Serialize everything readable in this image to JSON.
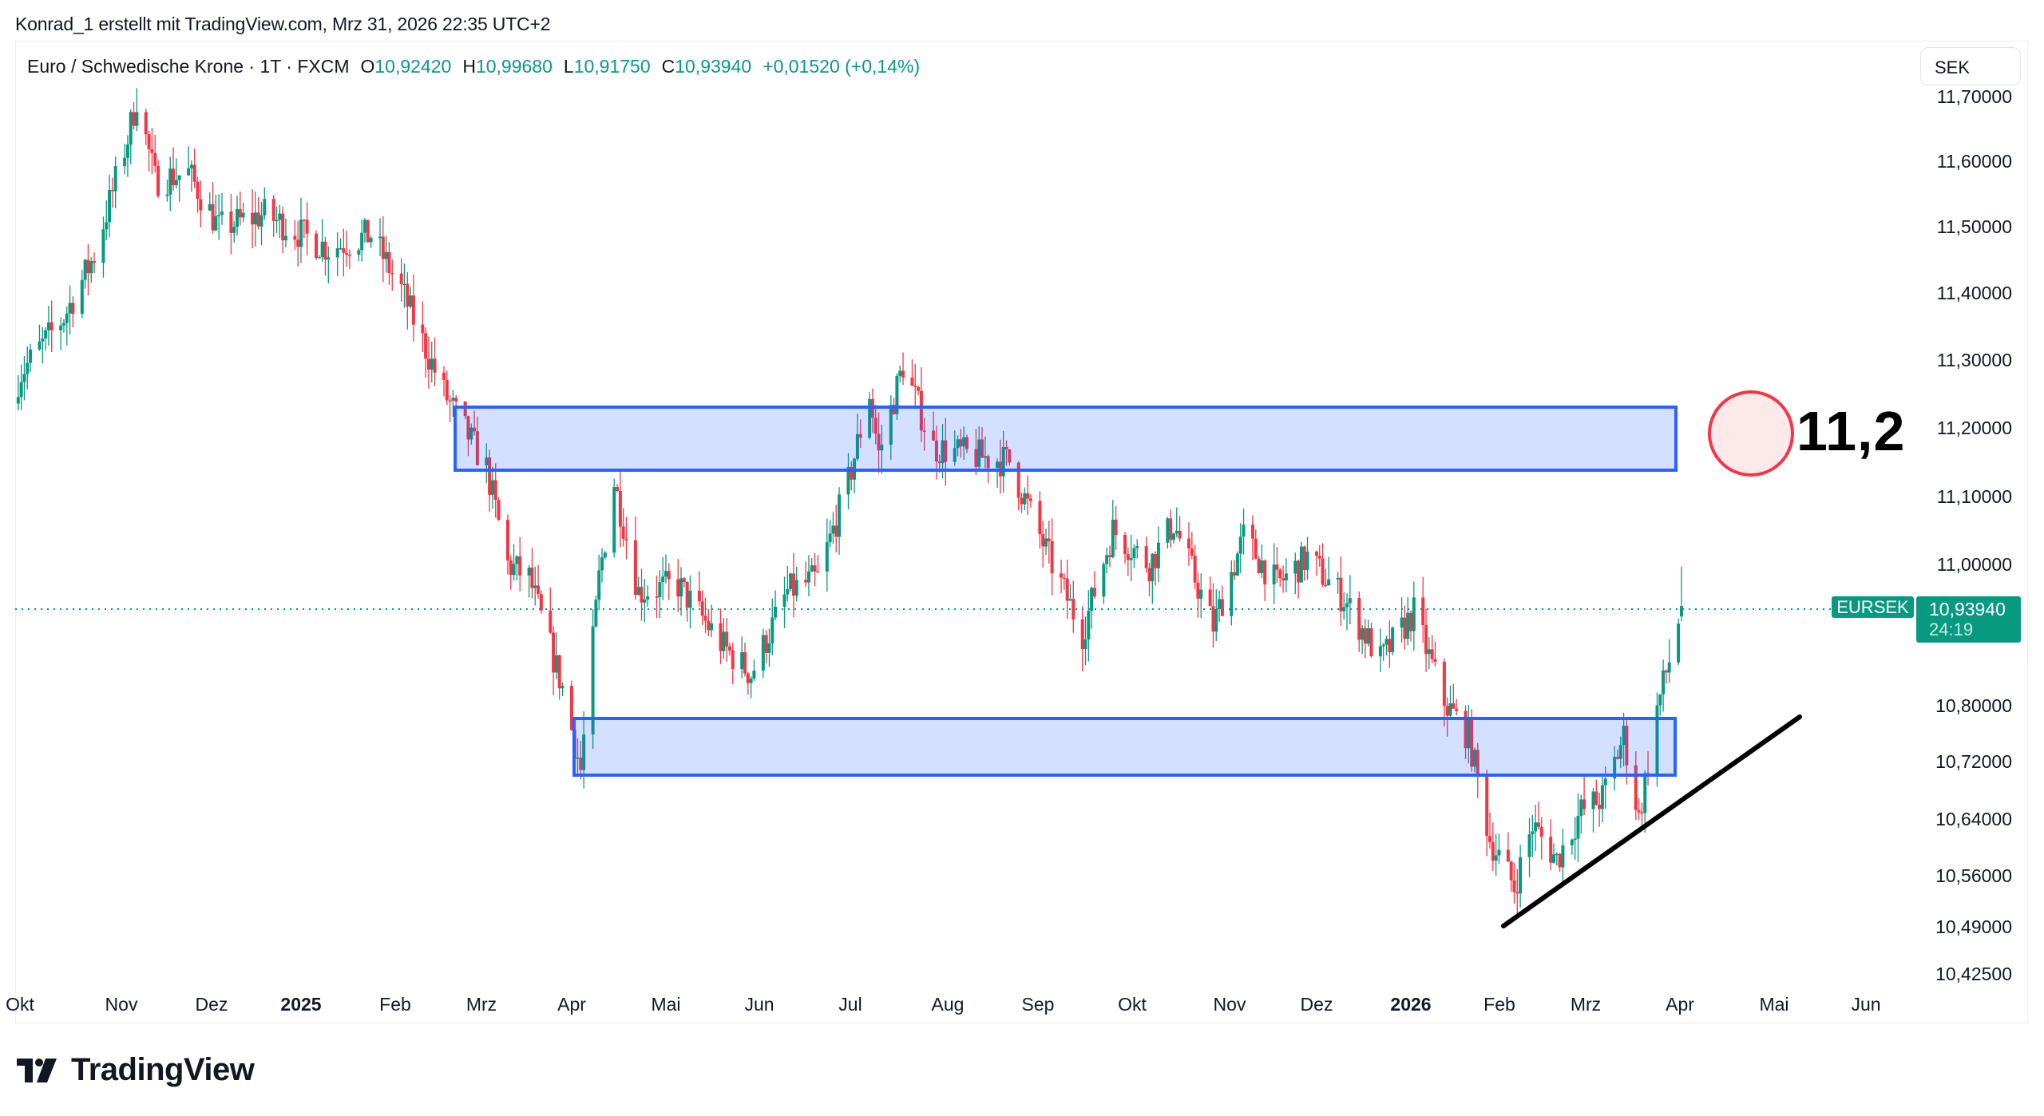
{
  "header": {
    "credit": "Konrad_1 erstellt mit TradingView.com, Mrz 31, 2026 22:35 UTC+2"
  },
  "legend": {
    "symbol": "Euro / Schwedische Krone · 1T · FXCM",
    "o_label": "O",
    "o_value": "10,92420",
    "h_label": "H",
    "h_value": "10,99680",
    "l_label": "L",
    "l_value": "10,91750",
    "c_label": "C",
    "c_value": "10,93940",
    "change": "+0,01520 (+0,14%)"
  },
  "currency_button": {
    "label": "SEK"
  },
  "price_tags": {
    "symbol": "EURSEK",
    "last_price": "10,93940",
    "countdown": "24:19"
  },
  "annotation": {
    "text": "11,2"
  },
  "branding": {
    "logo_text": "TradingView"
  },
  "colors": {
    "up": "#089981",
    "down": "#f23645",
    "zone_border": "#2962ff",
    "zone_fill": "rgba(41,98,255,0.2)",
    "circle_stroke": "#f23645",
    "circle_fill": "#fde8ea",
    "trendline": "#000000"
  },
  "chart_data": {
    "type": "candlestick",
    "title": "Euro / Schwedische Krone · 1T · FXCM",
    "symbol": "EURSEK",
    "timeframe": "1D",
    "xlabel": "",
    "ylabel": "SEK",
    "ylim": [
      10.4,
      11.72
    ],
    "y_ticks": [
      "11,70000",
      "11,60000",
      "11,50000",
      "11,40000",
      "11,30000",
      "11,20000",
      "11,10000",
      "11,00000",
      "10,80000",
      "10,72000",
      "10,64000",
      "10,56000",
      "10,49000",
      "10,42500"
    ],
    "x_ticks": [
      {
        "label": "Okt",
        "bold": false
      },
      {
        "label": "Nov",
        "bold": false
      },
      {
        "label": "Dez",
        "bold": false
      },
      {
        "label": "2025",
        "bold": true
      },
      {
        "label": "Feb",
        "bold": false
      },
      {
        "label": "Mrz",
        "bold": false
      },
      {
        "label": "Apr",
        "bold": false
      },
      {
        "label": "Mai",
        "bold": false
      },
      {
        "label": "Jun",
        "bold": false
      },
      {
        "label": "Jul",
        "bold": false
      },
      {
        "label": "Aug",
        "bold": false
      },
      {
        "label": "Sep",
        "bold": false
      },
      {
        "label": "Okt",
        "bold": false
      },
      {
        "label": "Nov",
        "bold": false
      },
      {
        "label": "Dez",
        "bold": false
      },
      {
        "label": "2026",
        "bold": true
      },
      {
        "label": "Feb",
        "bold": false
      },
      {
        "label": "Mrz",
        "bold": false
      },
      {
        "label": "Apr",
        "bold": false
      },
      {
        "label": "Mai",
        "bold": false
      },
      {
        "label": "Jun",
        "bold": false
      }
    ],
    "last": {
      "open": 10.9242,
      "high": 10.9968,
      "low": 10.9175,
      "close": 10.9394,
      "change": 0.0152,
      "change_pct": 0.14
    },
    "approx_close_path": [
      {
        "date": "2024-10-01",
        "close": 11.28
      },
      {
        "date": "2024-10-15",
        "close": 11.36
      },
      {
        "date": "2024-10-25",
        "close": 11.45
      },
      {
        "date": "2024-11-05",
        "close": 11.62
      },
      {
        "date": "2024-11-08",
        "close": 11.68
      },
      {
        "date": "2024-11-14",
        "close": 11.56
      },
      {
        "date": "2024-11-25",
        "close": 11.57
      },
      {
        "date": "2024-12-05",
        "close": 11.49
      },
      {
        "date": "2024-12-20",
        "close": 11.51
      },
      {
        "date": "2025-01-10",
        "close": 11.46
      },
      {
        "date": "2025-01-24",
        "close": 11.48
      },
      {
        "date": "2025-02-03",
        "close": 11.4
      },
      {
        "date": "2025-02-17",
        "close": 11.25
      },
      {
        "date": "2025-03-03",
        "close": 11.14
      },
      {
        "date": "2025-03-10",
        "close": 11.0
      },
      {
        "date": "2025-03-17",
        "close": 10.98
      },
      {
        "date": "2025-03-28",
        "close": 10.82
      },
      {
        "date": "2025-04-03",
        "close": 10.7
      },
      {
        "date": "2025-04-09",
        "close": 10.98
      },
      {
        "date": "2025-04-14",
        "close": 11.12
      },
      {
        "date": "2025-04-22",
        "close": 10.96
      },
      {
        "date": "2025-05-05",
        "close": 10.97
      },
      {
        "date": "2025-05-20",
        "close": 10.88
      },
      {
        "date": "2025-05-29",
        "close": 10.84
      },
      {
        "date": "2025-06-10",
        "close": 10.96
      },
      {
        "date": "2025-06-20",
        "close": 10.98
      },
      {
        "date": "2025-06-30",
        "close": 11.12
      },
      {
        "date": "2025-07-07",
        "close": 11.25
      },
      {
        "date": "2025-07-10",
        "close": 11.16
      },
      {
        "date": "2025-07-18",
        "close": 11.29
      },
      {
        "date": "2025-07-28",
        "close": 11.17
      },
      {
        "date": "2025-08-08",
        "close": 11.16
      },
      {
        "date": "2025-08-22",
        "close": 11.15
      },
      {
        "date": "2025-09-03",
        "close": 11.02
      },
      {
        "date": "2025-09-15",
        "close": 10.9
      },
      {
        "date": "2025-09-25",
        "close": 11.05
      },
      {
        "date": "2025-10-07",
        "close": 11.0
      },
      {
        "date": "2025-10-15",
        "close": 11.06
      },
      {
        "date": "2025-10-28",
        "close": 10.91
      },
      {
        "date": "2025-11-07",
        "close": 11.04
      },
      {
        "date": "2025-11-18",
        "close": 10.97
      },
      {
        "date": "2025-11-28",
        "close": 11.01
      },
      {
        "date": "2025-12-10",
        "close": 10.95
      },
      {
        "date": "2025-12-22",
        "close": 10.86
      },
      {
        "date": "2026-01-02",
        "close": 10.93
      },
      {
        "date": "2026-01-12",
        "close": 10.8
      },
      {
        "date": "2026-01-20",
        "close": 10.75
      },
      {
        "date": "2026-01-27",
        "close": 10.6
      },
      {
        "date": "2026-02-04",
        "close": 10.53
      },
      {
        "date": "2026-02-10",
        "close": 10.62
      },
      {
        "date": "2026-02-18",
        "close": 10.57
      },
      {
        "date": "2026-02-26",
        "close": 10.64
      },
      {
        "date": "2026-03-05",
        "close": 10.66
      },
      {
        "date": "2026-03-12",
        "close": 10.75
      },
      {
        "date": "2026-03-17",
        "close": 10.63
      },
      {
        "date": "2026-03-23",
        "close": 10.79
      },
      {
        "date": "2026-03-27",
        "close": 10.86
      },
      {
        "date": "2026-03-31",
        "close": 10.9394
      }
    ],
    "drawings": {
      "resistance_zone": {
        "top": 11.235,
        "bottom": 11.14,
        "from": "2025-02-24",
        "to": "2026-03-31"
      },
      "support_zone": {
        "top": 10.78,
        "bottom": 10.7,
        "from": "2025-04-03",
        "to": "2026-03-31"
      },
      "trendline": {
        "from": {
          "date": "2026-02-04",
          "price": 10.49
        },
        "to": {
          "date": "2026-04-28",
          "price": 10.785
        }
      },
      "target_marker": {
        "price": 11.2,
        "label": "11,2"
      },
      "last_price_line": 10.9394
    }
  }
}
